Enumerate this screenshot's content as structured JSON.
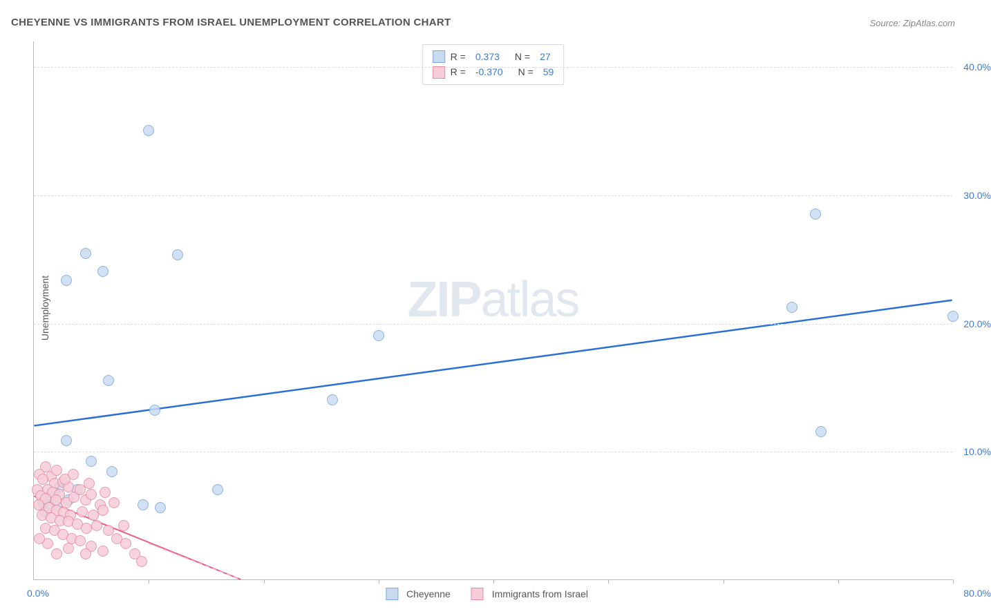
{
  "title": "CHEYENNE VS IMMIGRANTS FROM ISRAEL UNEMPLOYMENT CORRELATION CHART",
  "source": "Source: ZipAtlas.com",
  "watermark": "ZIPatlas",
  "ylabel": "Unemployment",
  "chart": {
    "type": "scatter",
    "xlim": [
      0,
      80
    ],
    "ylim": [
      0,
      42
    ],
    "xtick_labels": {
      "min": "0.0%",
      "max": "80.0%"
    },
    "ytick_positions": [
      10,
      20,
      30,
      40
    ],
    "ytick_labels": [
      "10.0%",
      "20.0%",
      "30.0%",
      "40.0%"
    ],
    "xtick_marks": [
      10,
      20,
      30,
      40,
      50,
      60,
      70,
      80
    ],
    "grid_color": "#dcdcdc",
    "axis_color": "#b8b8b8",
    "background_color": "#ffffff",
    "series": [
      {
        "name": "Cheyenne",
        "marker_radius": 8,
        "fill_color": "#c9dbf0",
        "border_color": "#7aa8d8",
        "border_width": 1,
        "points": [
          [
            10.0,
            35.0
          ],
          [
            4.5,
            25.4
          ],
          [
            6.0,
            24.0
          ],
          [
            2.8,
            23.3
          ],
          [
            12.5,
            25.3
          ],
          [
            68.0,
            28.5
          ],
          [
            66.0,
            21.2
          ],
          [
            80.0,
            20.5
          ],
          [
            68.5,
            11.5
          ],
          [
            30.0,
            19.0
          ],
          [
            26.0,
            14.0
          ],
          [
            6.5,
            15.5
          ],
          [
            10.5,
            13.2
          ],
          [
            2.8,
            10.8
          ],
          [
            5.0,
            9.2
          ],
          [
            6.8,
            8.4
          ],
          [
            16.0,
            7.0
          ],
          [
            9.5,
            5.8
          ],
          [
            11.0,
            5.6
          ],
          [
            2.2,
            7.2
          ],
          [
            1.5,
            6.5
          ],
          [
            3.8,
            7.0
          ],
          [
            0.8,
            6.0
          ],
          [
            2.0,
            5.7
          ],
          [
            1.0,
            5.3
          ],
          [
            3.0,
            6.2
          ],
          [
            1.8,
            6.8
          ]
        ],
        "trend": {
          "color": "#2a6fd6",
          "width": 2.5,
          "x1": 0,
          "y1": 12.0,
          "x2": 80,
          "y2": 21.8,
          "dash": "none"
        }
      },
      {
        "name": "Immigrants from Israel",
        "marker_radius": 8,
        "fill_color": "#f6cdd8",
        "border_color": "#e68aa3",
        "border_width": 1,
        "points": [
          [
            1.0,
            8.8
          ],
          [
            0.5,
            8.2
          ],
          [
            1.5,
            8.0
          ],
          [
            2.0,
            8.5
          ],
          [
            0.8,
            7.8
          ],
          [
            1.8,
            7.5
          ],
          [
            2.5,
            7.6
          ],
          [
            3.0,
            7.2
          ],
          [
            0.3,
            7.0
          ],
          [
            1.2,
            7.0
          ],
          [
            1.6,
            6.8
          ],
          [
            2.2,
            6.6
          ],
          [
            0.6,
            6.5
          ],
          [
            1.0,
            6.3
          ],
          [
            1.9,
            6.2
          ],
          [
            2.8,
            6.0
          ],
          [
            3.5,
            6.4
          ],
          [
            4.0,
            7.0
          ],
          [
            4.5,
            6.2
          ],
          [
            5.0,
            6.6
          ],
          [
            5.8,
            5.8
          ],
          [
            0.4,
            5.8
          ],
          [
            1.3,
            5.6
          ],
          [
            2.0,
            5.4
          ],
          [
            2.6,
            5.2
          ],
          [
            3.2,
            5.0
          ],
          [
            4.2,
            5.3
          ],
          [
            5.2,
            5.0
          ],
          [
            6.0,
            5.4
          ],
          [
            0.7,
            5.0
          ],
          [
            1.5,
            4.8
          ],
          [
            2.3,
            4.6
          ],
          [
            3.0,
            4.5
          ],
          [
            3.8,
            4.3
          ],
          [
            4.6,
            4.0
          ],
          [
            5.5,
            4.2
          ],
          [
            6.5,
            3.8
          ],
          [
            7.2,
            3.2
          ],
          [
            8.0,
            2.8
          ],
          [
            1.0,
            4.0
          ],
          [
            1.8,
            3.8
          ],
          [
            2.5,
            3.5
          ],
          [
            3.3,
            3.2
          ],
          [
            4.0,
            3.0
          ],
          [
            5.0,
            2.6
          ],
          [
            6.0,
            2.2
          ],
          [
            3.0,
            2.4
          ],
          [
            4.5,
            2.0
          ],
          [
            2.0,
            2.0
          ],
          [
            1.2,
            2.8
          ],
          [
            0.5,
            3.2
          ],
          [
            7.8,
            4.2
          ],
          [
            8.8,
            2.0
          ],
          [
            9.4,
            1.4
          ],
          [
            2.7,
            7.8
          ],
          [
            3.4,
            8.2
          ],
          [
            4.8,
            7.5
          ],
          [
            6.2,
            6.8
          ],
          [
            7.0,
            6.0
          ]
        ],
        "trend": {
          "color": "#e85d85",
          "width": 2,
          "x1": 0,
          "y1": 6.5,
          "x2": 18,
          "y2": 0.0,
          "dash": "none"
        },
        "trend_ext": {
          "color": "#f0b8c7",
          "width": 1.5,
          "x1": 10,
          "y1": 2.8,
          "x2": 18,
          "y2": 0.0,
          "dash": "6,5"
        }
      }
    ]
  },
  "legend_top": {
    "rows": [
      {
        "swatch_fill": "#c9dbf0",
        "swatch_border": "#7aa8d8",
        "r_label": "R =",
        "r_val": "0.373",
        "n_label": "N =",
        "n_val": "27"
      },
      {
        "swatch_fill": "#f6cdd8",
        "swatch_border": "#e68aa3",
        "r_label": "R =",
        "r_val": "-0.370",
        "n_label": "N =",
        "n_val": "59"
      }
    ]
  },
  "legend_bottom": {
    "items": [
      {
        "swatch_fill": "#c9dbf0",
        "swatch_border": "#7aa8d8",
        "label": "Cheyenne"
      },
      {
        "swatch_fill": "#f6cdd8",
        "swatch_border": "#e68aa3",
        "label": "Immigrants from Israel"
      }
    ]
  }
}
